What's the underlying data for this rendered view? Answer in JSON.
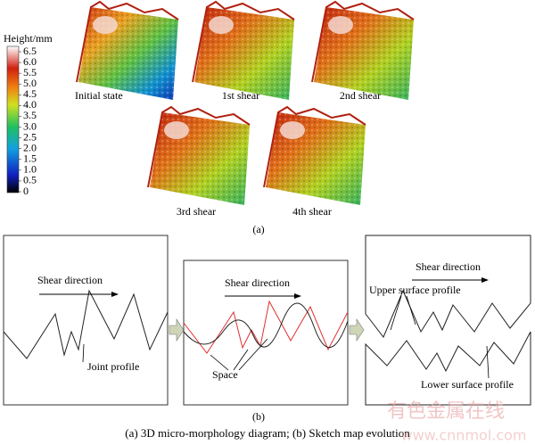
{
  "figure_a": {
    "colorbar": {
      "title": "Height/mm",
      "ticks": [
        "6.5",
        "6.0",
        "5.5",
        "5.0",
        "4.5",
        "4.0",
        "3.5",
        "3.0",
        "2.5",
        "2.0",
        "1.5",
        "1.0",
        "0.5",
        "0"
      ]
    },
    "surfaces": [
      "Initial state",
      "1st shear",
      "2nd shear",
      "3rd shear",
      "4th shear"
    ],
    "label": "(a)"
  },
  "figure_b": {
    "panels": [
      {
        "labels": [
          "Shear direction",
          "Joint profile"
        ]
      },
      {
        "labels": [
          "Shear direction",
          "Space"
        ]
      },
      {
        "labels": [
          "Shear direction",
          "Upper surface profile",
          "Lower surface profile"
        ]
      }
    ],
    "label": "(b)"
  },
  "caption": "(a) 3D micro-morphology diagram; (b) Sketch map  evolution",
  "watermark": [
    "有色金属在线",
    "www.cnnmol.com"
  ]
}
